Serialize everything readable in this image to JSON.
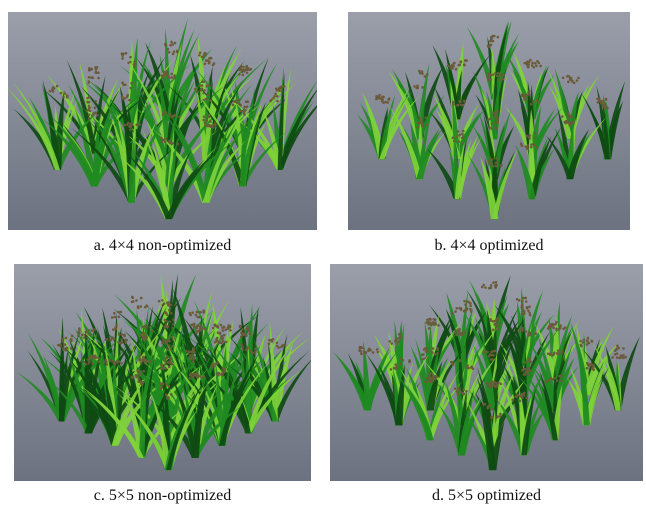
{
  "figure": {
    "panels": [
      {
        "id": "a",
        "caption": "a. 4×4 non-optimized",
        "grid": 4,
        "optimized": false
      },
      {
        "id": "b",
        "caption": "b. 4×4 optimized",
        "grid": 4,
        "optimized": true
      },
      {
        "id": "c",
        "caption": "c. 5×5 non-optimized",
        "grid": 5,
        "optimized": false
      },
      {
        "id": "d",
        "caption": "d. 5×5 optimized",
        "grid": 5,
        "optimized": true
      }
    ]
  },
  "colors": {
    "background_top": "#9a9faa",
    "background_bottom": "#6d7280",
    "leaf_dark": "#0e4a12",
    "leaf_mid": "#1f8a22",
    "leaf_light": "#7fd23a",
    "panicle": "#6b5a3a"
  }
}
